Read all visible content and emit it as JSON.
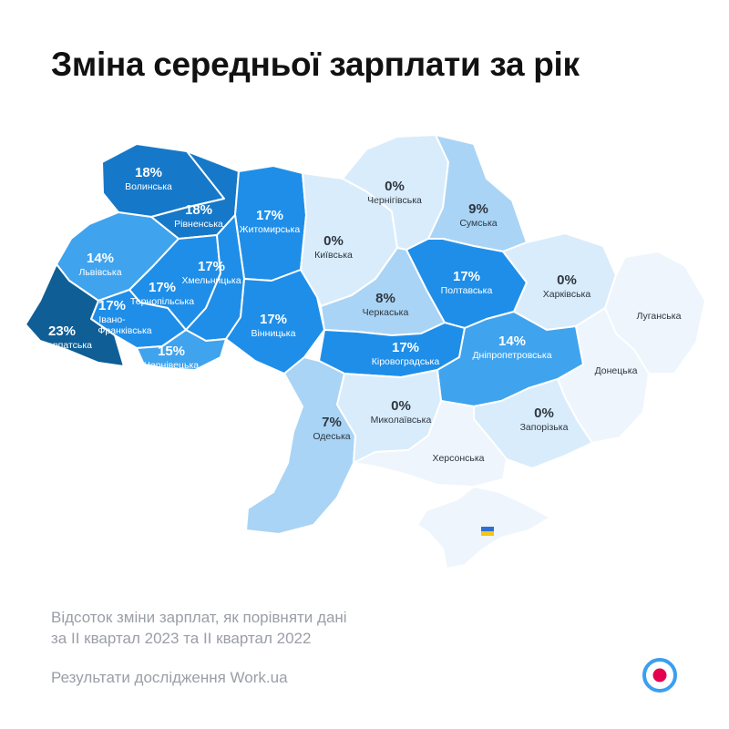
{
  "title": "Зміна середньої зарплати за рік",
  "note_line1": "Відсоток зміни зарплат, як порівняти дані",
  "note_line2": "за II квартал 2023 та II квартал 2022",
  "source": "Результати дослідження Work.ua",
  "colors": {
    "darkest": "#0f5e96",
    "dark": "#1678c8",
    "mid": "#1f8ee8",
    "medium": "#3fa3ee",
    "light": "#a9d4f5",
    "pale": "#d9ecfb",
    "palest": "#eef5fc",
    "label_dark": "#2f3640",
    "label_light": "#ffffff",
    "accent": "#e5004f"
  },
  "map_data": {
    "value_unit": "%",
    "regions": [
      {
        "id": "volynska",
        "name": "Волинська",
        "value": 18,
        "label": "18%"
      },
      {
        "id": "rivnenska",
        "name": "Рівненська",
        "value": 18,
        "label": "18%"
      },
      {
        "id": "zhytomyrska",
        "name": "Житомирська",
        "value": 17,
        "label": "17%"
      },
      {
        "id": "lvivska",
        "name": "Львівська",
        "value": 14,
        "label": "14%"
      },
      {
        "id": "ternopilska",
        "name": "Тернопільська",
        "value": 17,
        "label": "17%"
      },
      {
        "id": "khmelnytska",
        "name": "Хмельницька",
        "value": 17,
        "label": "17%"
      },
      {
        "id": "ivano_frankivska",
        "name": "Івано-Франківська",
        "name_line1": "Івано-",
        "name_line2": "Франківська",
        "value": 17,
        "label": "17%"
      },
      {
        "id": "zakarpatska",
        "name": "Закарпатська",
        "value": 23,
        "label": "23%"
      },
      {
        "id": "chernivetska",
        "name": "Чернівецька",
        "value": 15,
        "label": "15%"
      },
      {
        "id": "vinnytska",
        "name": "Вінницька",
        "value": 17,
        "label": "17%"
      },
      {
        "id": "kyivska",
        "name": "Київська",
        "value": 0,
        "label": "0%"
      },
      {
        "id": "chernihivska",
        "name": "Чернігівська",
        "value": 0,
        "label": "0%"
      },
      {
        "id": "sumska",
        "name": "Сумська",
        "value": 9,
        "label": "9%"
      },
      {
        "id": "poltavska",
        "name": "Полтавська",
        "value": 17,
        "label": "17%"
      },
      {
        "id": "kharkivska",
        "name": "Харківська",
        "value": 0,
        "label": "0%"
      },
      {
        "id": "luhanska",
        "name": "Луганська",
        "value": null,
        "label": ""
      },
      {
        "id": "cherkaska",
        "name": "Черкаська",
        "value": 8,
        "label": "8%"
      },
      {
        "id": "kirovohradska",
        "name": "Кіровоградська",
        "value": 17,
        "label": "17%"
      },
      {
        "id": "dnipropetrovska",
        "name": "Дніпропетровська",
        "value": 14,
        "label": "14%"
      },
      {
        "id": "donetska",
        "name": "Донецька",
        "value": null,
        "label": ""
      },
      {
        "id": "odeska",
        "name": "Одеська",
        "value": 7,
        "label": "7%"
      },
      {
        "id": "mykolaivska",
        "name": "Миколаївська",
        "value": 0,
        "label": "0%"
      },
      {
        "id": "zaporizka",
        "name": "Запорізька",
        "value": 0,
        "label": "0%"
      },
      {
        "id": "khersonska",
        "name": "Херсонська",
        "value": null,
        "label": ""
      },
      {
        "id": "crimea",
        "name": "",
        "value": null,
        "label": "",
        "icon": "ukrainian-flag-icon"
      }
    ]
  },
  "logo_icon": "workua-logo-icon"
}
